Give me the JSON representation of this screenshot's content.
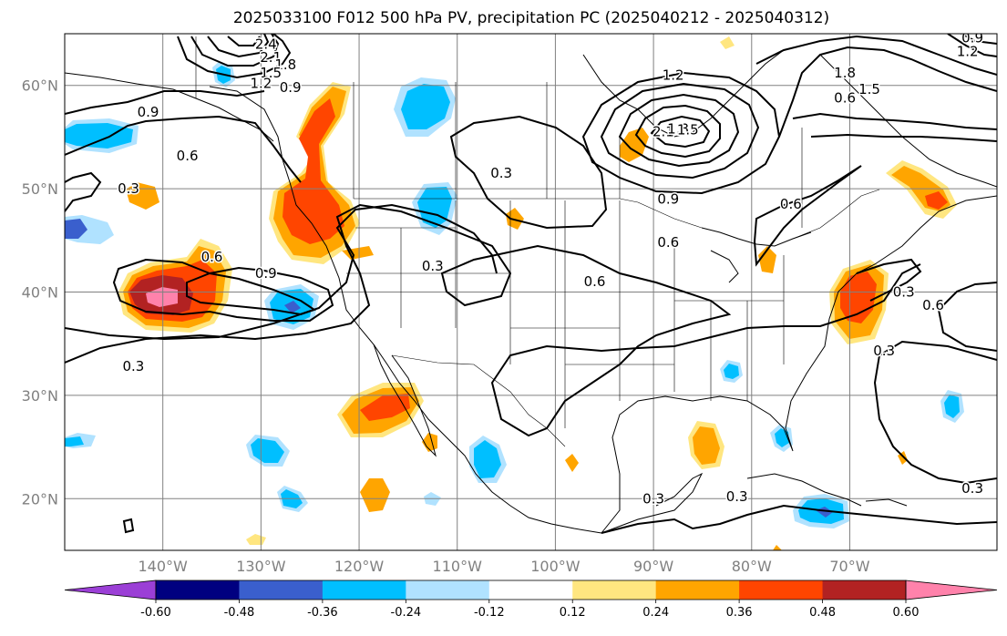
{
  "title": "2025033100 F012 500 hPa PV, precipitation PC (2025040212 - 2025040312)",
  "map": {
    "projection": "PlateCarree",
    "lon_range": [
      -150,
      -55
    ],
    "lat_range": [
      15,
      65
    ],
    "lat_ticks": [
      {
        "value": 20,
        "label": "20°N"
      },
      {
        "value": 30,
        "label": "30°N"
      },
      {
        "value": 40,
        "label": "40°N"
      },
      {
        "value": 50,
        "label": "50°N"
      },
      {
        "value": 60,
        "label": "60°N"
      }
    ],
    "lon_ticks": [
      {
        "value": -140,
        "label": "140°W"
      },
      {
        "value": -130,
        "label": "130°W"
      },
      {
        "value": -120,
        "label": "120°W"
      },
      {
        "value": -110,
        "label": "110°W"
      },
      {
        "value": -100,
        "label": "100°W"
      },
      {
        "value": -90,
        "label": "90°W"
      },
      {
        "value": -80,
        "label": "80°W"
      },
      {
        "value": -70,
        "label": "70°W"
      }
    ],
    "grid": true
  },
  "colorbar": {
    "levels": [
      "-0.60",
      "-0.48",
      "-0.36",
      "-0.24",
      "-0.12",
      "0.12",
      "0.24",
      "0.36",
      "0.48",
      "0.60"
    ],
    "colors": [
      "#9b3fd6",
      "#000080",
      "#3a5fcd",
      "#00bfff",
      "#b0e2ff",
      "#ffffff",
      "#ffe680",
      "#ffa500",
      "#ff4500",
      "#b22222",
      "#ff82ab"
    ],
    "extend": "both"
  },
  "contour_labels": [
    {
      "text": "2.4",
      "lon": -129.5,
      "lat": 64.0
    },
    {
      "text": "2.1",
      "lon": -129.0,
      "lat": 62.7
    },
    {
      "text": "1.8",
      "lon": -127.5,
      "lat": 62.0
    },
    {
      "text": "1.5",
      "lon": -129.0,
      "lat": 61.2
    },
    {
      "text": "1.2",
      "lon": -130.0,
      "lat": 60.2
    },
    {
      "text": "0.9",
      "lon": -127.0,
      "lat": 59.8
    },
    {
      "text": "0.9",
      "lon": -141.5,
      "lat": 57.4
    },
    {
      "text": "0.6",
      "lon": -137.5,
      "lat": 53.2
    },
    {
      "text": "0.3",
      "lon": -143.5,
      "lat": 50.0
    },
    {
      "text": "0.6",
      "lon": -135.0,
      "lat": 43.4
    },
    {
      "text": "0.9",
      "lon": -129.5,
      "lat": 41.8
    },
    {
      "text": "0.3",
      "lon": -143.0,
      "lat": 32.8
    },
    {
      "text": "0.3",
      "lon": -112.5,
      "lat": 42.5
    },
    {
      "text": "0.3",
      "lon": -105.5,
      "lat": 51.5
    },
    {
      "text": "0.6",
      "lon": -96.0,
      "lat": 41.0
    },
    {
      "text": "1.2",
      "lon": -88.0,
      "lat": 61.0
    },
    {
      "text": "2.1",
      "lon": -89.0,
      "lat": 55.5
    },
    {
      "text": "1.8",
      "lon": -87.5,
      "lat": 55.8
    },
    {
      "text": "1.5",
      "lon": -86.5,
      "lat": 55.7
    },
    {
      "text": "0.9",
      "lon": -88.5,
      "lat": 49.0
    },
    {
      "text": "0.6",
      "lon": -88.5,
      "lat": 44.8
    },
    {
      "text": "0.6",
      "lon": -76.0,
      "lat": 48.5
    },
    {
      "text": "0.3",
      "lon": -90.0,
      "lat": 20.0
    },
    {
      "text": "0.3",
      "lon": -81.5,
      "lat": 20.2
    },
    {
      "text": "0.3",
      "lon": -57.5,
      "lat": 21.0
    },
    {
      "text": "0.3",
      "lon": -66.5,
      "lat": 34.3
    },
    {
      "text": "0.6",
      "lon": -61.5,
      "lat": 38.7
    },
    {
      "text": "0.6",
      "lon": -70.5,
      "lat": 58.8
    },
    {
      "text": "1.8",
      "lon": -70.5,
      "lat": 61.2
    },
    {
      "text": "1.5",
      "lon": -68.0,
      "lat": 59.6
    },
    {
      "text": "0.9",
      "lon": -57.5,
      "lat": 64.6
    },
    {
      "text": "1.2",
      "lon": -58.0,
      "lat": 63.3
    },
    {
      "text": "0.3",
      "lon": -64.5,
      "lat": 40.0
    }
  ]
}
